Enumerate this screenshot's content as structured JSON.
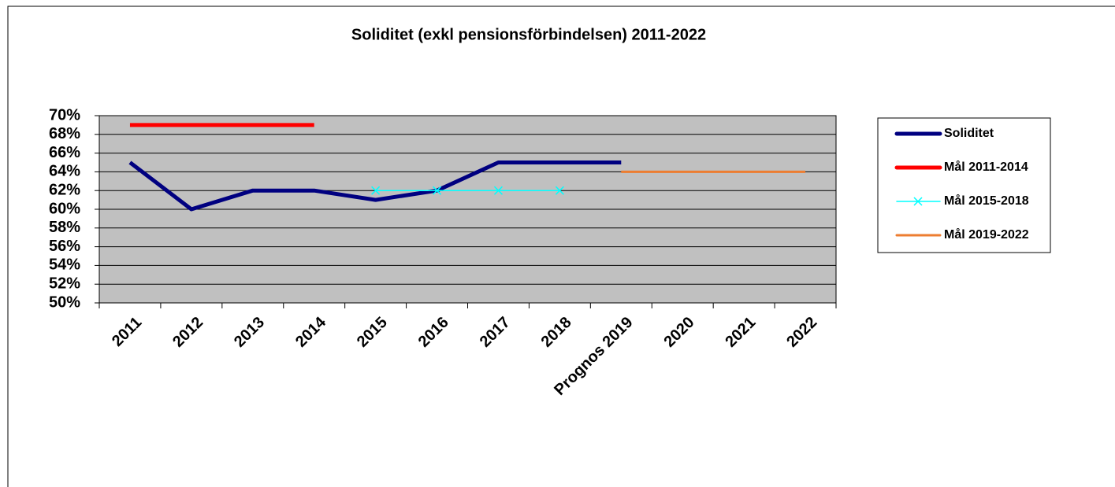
{
  "chart_data": {
    "type": "line",
    "title": "Soliditet (exkl pensionsförbindelsen) 2011-2022",
    "categories": [
      "2011",
      "2012",
      "2013",
      "2014",
      "2015",
      "2016",
      "2017",
      "2018",
      "Prognos 2019",
      "2020",
      "2021",
      "2022"
    ],
    "series": [
      {
        "name": "Soliditet",
        "color": "#000080",
        "values": [
          65,
          60,
          62,
          62,
          61,
          62,
          65,
          65,
          65,
          null,
          null,
          null
        ]
      },
      {
        "name": "Mål 2011-2014",
        "color": "#ff0000",
        "values": [
          69,
          69,
          69,
          69,
          null,
          null,
          null,
          null,
          null,
          null,
          null,
          null
        ]
      },
      {
        "name": "Mål 2015-2018",
        "color": "#00ffff",
        "marker": "x",
        "values": [
          null,
          null,
          null,
          null,
          62,
          62,
          62,
          62,
          null,
          null,
          null,
          null
        ]
      },
      {
        "name": "Mål 2019-2022",
        "color": "#ed7d31",
        "values": [
          null,
          null,
          null,
          null,
          null,
          null,
          null,
          null,
          64,
          64,
          64,
          64
        ]
      }
    ],
    "ylim": [
      50,
      70
    ],
    "yticks": [
      {
        "value": 50,
        "label": "50%"
      },
      {
        "value": 52,
        "label": "52%"
      },
      {
        "value": 54,
        "label": "54%"
      },
      {
        "value": 56,
        "label": "56%"
      },
      {
        "value": 58,
        "label": "58%"
      },
      {
        "value": 60,
        "label": "60%"
      },
      {
        "value": 62,
        "label": "62%"
      },
      {
        "value": 64,
        "label": "64%"
      },
      {
        "value": 66,
        "label": "66%"
      },
      {
        "value": 68,
        "label": "68%"
      },
      {
        "value": 70,
        "label": "70%"
      }
    ],
    "grid": true,
    "legend": "right",
    "plot_color": "#c0c0c0"
  }
}
